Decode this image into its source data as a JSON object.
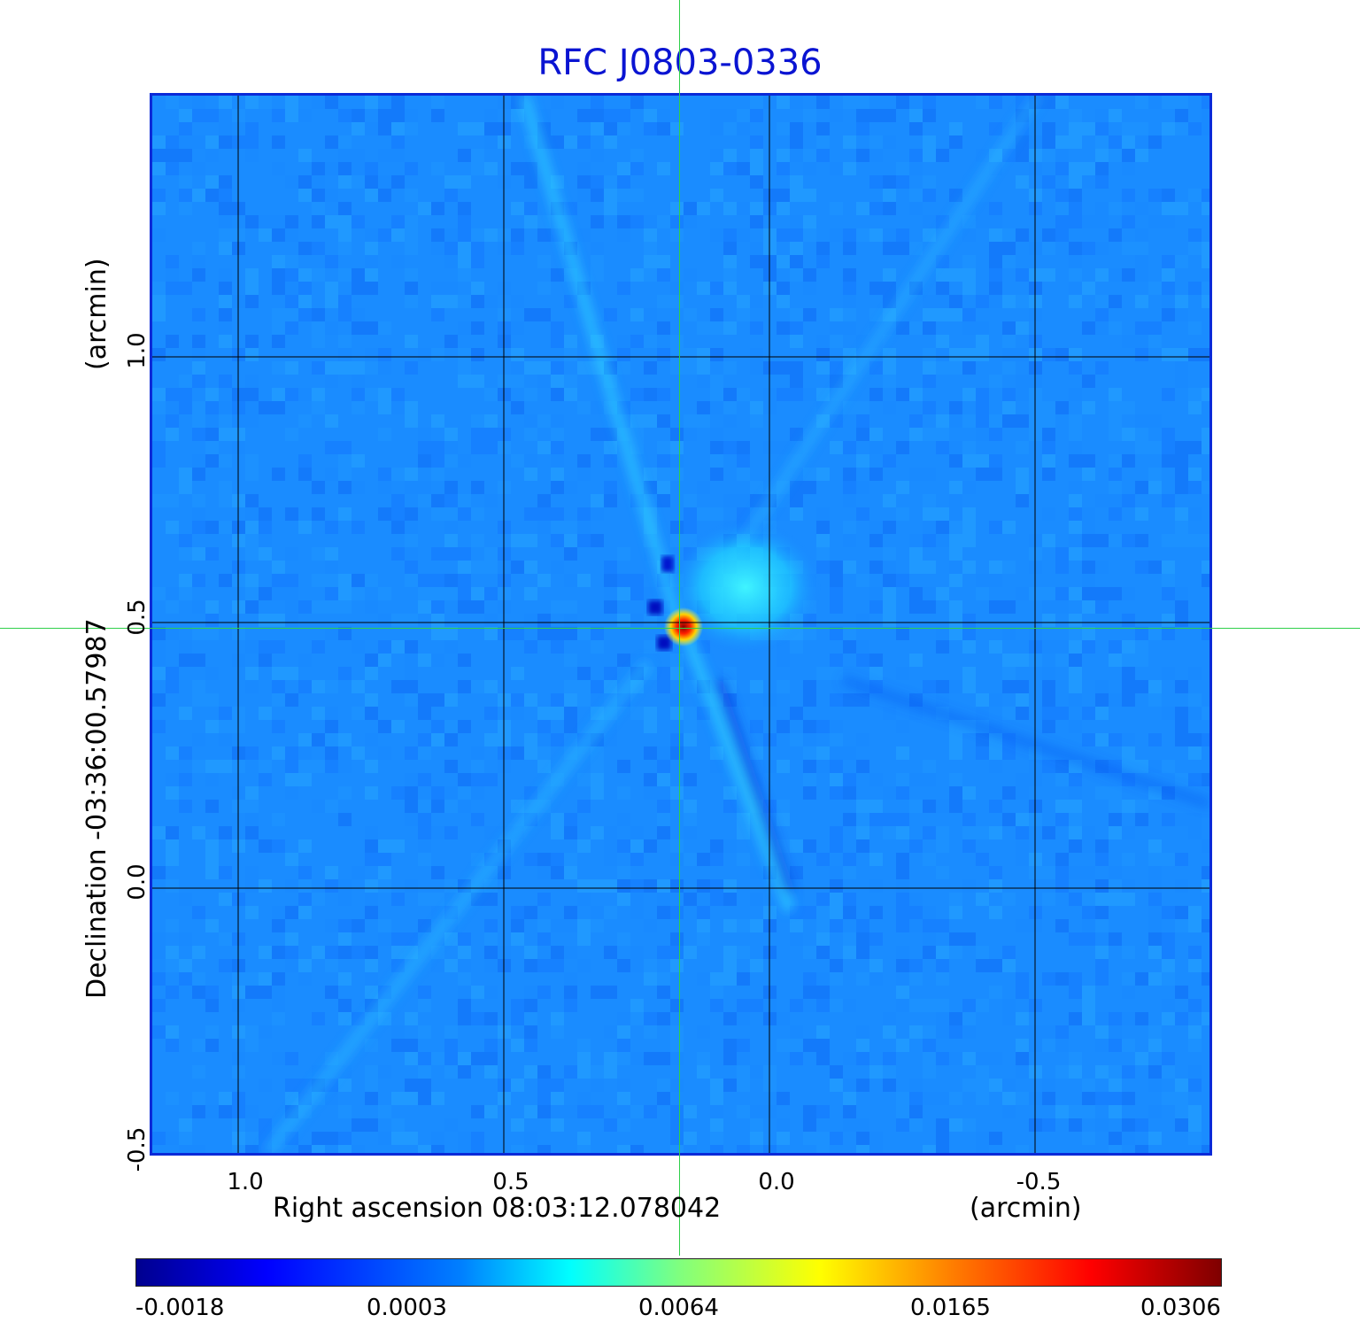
{
  "title": "RFC J0803-0336",
  "colors": {
    "title": "#0a14d2",
    "background_field": "#1a8cff",
    "crosshair": "#2fd04a",
    "frame": "#0a2ad8",
    "colormap": [
      "#00008f",
      "#0000ff",
      "#0080ff",
      "#00ffff",
      "#7fff7f",
      "#ffff00",
      "#ff8000",
      "#ff0000",
      "#7f0000"
    ]
  },
  "x_axis": {
    "label": "Right ascension  08:03:12.078042",
    "unit": "(arcmin)",
    "ticks": [
      "1.0",
      "0.5",
      "0.0",
      "-0.5"
    ]
  },
  "y_axis": {
    "label": "Declination  -03:36:00.57987",
    "unit": "(arcmin)",
    "ticks": [
      "1.0",
      "0.5",
      "0.0",
      "-0.5"
    ]
  },
  "colorbar": {
    "ticks": [
      "-0.0018",
      "0.0003",
      "0.0064",
      "0.0165",
      "0.0306"
    ]
  }
}
